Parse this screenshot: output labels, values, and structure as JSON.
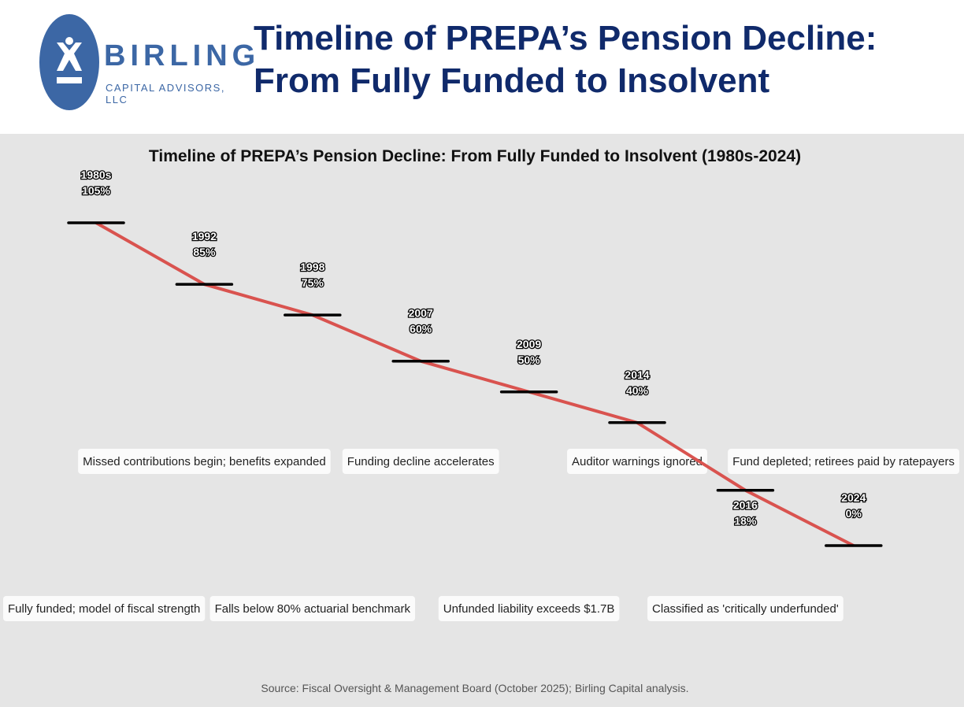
{
  "header": {
    "logo_name": "BIRLING",
    "logo_sub": "CAPITAL ADVISORS, LLC",
    "title_line1": "Timeline of PREPA’s Pension Decline:",
    "title_line2": "From Fully Funded to Insolvent"
  },
  "chart_data": {
    "type": "line",
    "title": "Timeline of PREPA’s Pension Decline: From Fully Funded to Insolvent (1980s-2024)",
    "categories": [
      "1980s",
      "1992",
      "1998",
      "2007",
      "2009",
      "2014",
      "2016",
      "2024"
    ],
    "values": [
      105,
      85,
      75,
      60,
      50,
      40,
      18,
      0
    ],
    "point_labels": [
      "1980s\n105%",
      "1992\n85%",
      "1998\n75%",
      "2007\n60%",
      "2009\n50%",
      "2014\n40%",
      "2016\n18%",
      "2024\n0%"
    ],
    "annotations": [
      {
        "category": "1980s",
        "row": "lower",
        "text": "Fully funded; model of fiscal strength"
      },
      {
        "category": "1992",
        "row": "upper",
        "text": "Missed contributions begin; benefits expanded"
      },
      {
        "category": "1998",
        "row": "lower",
        "text": "Falls below 80% actuarial benchmark"
      },
      {
        "category": "2007",
        "row": "upper",
        "text": "Funding decline accelerates"
      },
      {
        "category": "2009",
        "row": "lower",
        "text": "Unfunded liability exceeds $1.7B"
      },
      {
        "category": "2014",
        "row": "upper",
        "text": "Auditor warnings ignored"
      },
      {
        "category": "2016",
        "row": "lower",
        "text": "Classified as 'critically underfunded'"
      },
      {
        "category": "2024",
        "row": "upper",
        "text": "Fund depleted; retirees paid by ratepayers"
      }
    ],
    "ylim": [
      0,
      105
    ],
    "grid": false,
    "line_color": "#d9534f",
    "marker_color": "#000000",
    "background": "#e5e5e5",
    "source": "Source: Fiscal Oversight & Management Board (October 2025); Birling Capital analysis."
  }
}
